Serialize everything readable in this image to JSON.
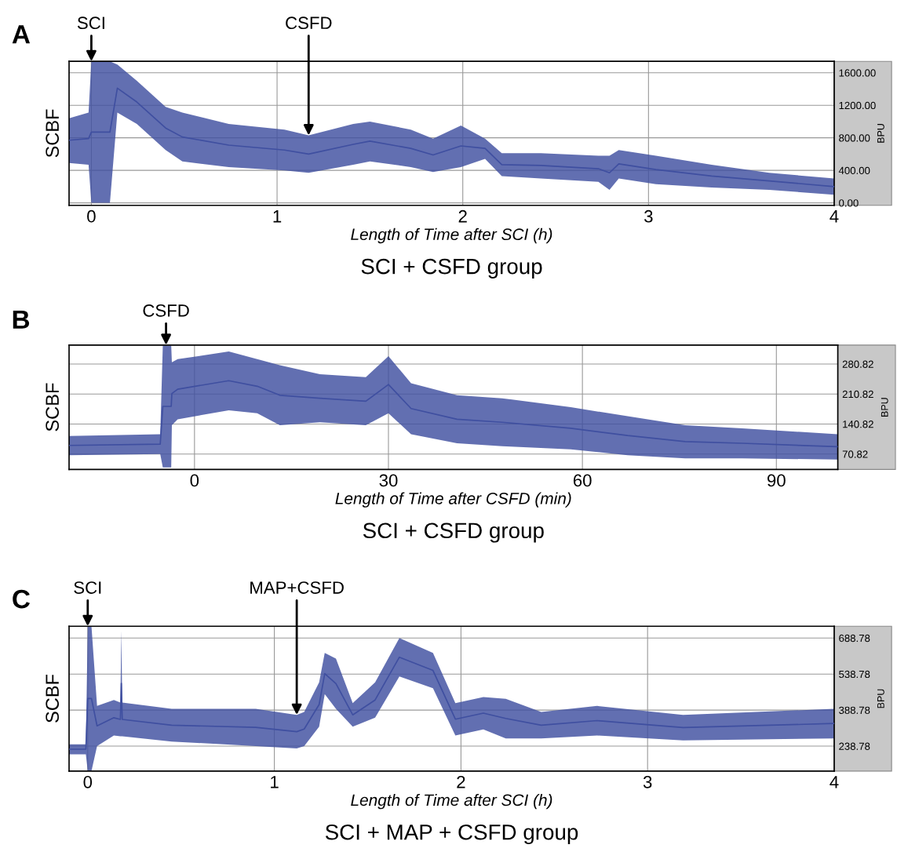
{
  "chart_data": [
    {
      "type": "line",
      "title": "A",
      "subtitle": "SCI + CSFD group",
      "xlabel": "Length of Time after SCI (h)",
      "ylabel": "SCBF",
      "annotations": [
        "BPU",
        {
          "text": "SCI",
          "x": 0,
          "y": 1740
        },
        {
          "text": "CSFD",
          "x": 1.17,
          "y": 830
        }
      ],
      "xlim": [
        -0.12,
        4.0
      ],
      "xticks": [
        0,
        1,
        2,
        3,
        4
      ],
      "ylim": [
        -30,
        1740
      ],
      "yticks": [
        {
          "value": 0,
          "label": "0.00"
        },
        {
          "value": 400,
          "label": "400.00"
        },
        {
          "value": 800,
          "label": "800.00"
        },
        {
          "value": 1200,
          "label": "1200.00"
        },
        {
          "value": 1600,
          "label": "1600.00"
        }
      ],
      "grid": true,
      "marker": "none",
      "line_style": "solid",
      "series": [
        {
          "color": "#3f4fa0",
          "x": [
            -0.12,
            -0.015,
            0.0,
            0.1,
            0.14,
            0.245,
            0.4,
            0.49,
            0.74,
            1.04,
            1.17,
            1.41,
            1.5,
            1.72,
            1.84,
            1.99,
            2.12,
            2.21,
            2.42,
            2.73,
            2.79,
            2.84,
            3.04,
            3.34,
            3.65,
            4.0
          ],
          "upper": [
            1040,
            1110,
            1740,
            1740,
            1700,
            1500,
            1180,
            1110,
            970,
            900,
            830,
            970,
            1000,
            900,
            790,
            950,
            790,
            610,
            610,
            580,
            580,
            650,
            580,
            470,
            370,
            300
          ],
          "lower": [
            490,
            470,
            0,
            0,
            1110,
            970,
            650,
            510,
            440,
            400,
            370,
            470,
            510,
            440,
            380,
            440,
            540,
            330,
            300,
            260,
            160,
            300,
            230,
            190,
            160,
            100
          ],
          "values": [
            770,
            790,
            870,
            870,
            1410,
            1240,
            920,
            810,
            710,
            650,
            600,
            720,
            760,
            670,
            590,
            700,
            670,
            470,
            460,
            420,
            370,
            480,
            410,
            330,
            270,
            200
          ]
        }
      ]
    },
    {
      "type": "line",
      "title": "B",
      "subtitle": "SCI + CSFD group",
      "xlabel": "Length of Time after CSFD (min)",
      "ylabel": "SCBF",
      "annotations": [
        "BPU",
        {
          "text": "CSFD",
          "x": -4.4,
          "y": 325
        }
      ],
      "xlim": [
        -19.4,
        99.5
      ],
      "xticks": [
        0,
        30,
        60,
        90
      ],
      "ylim": [
        35,
        325
      ],
      "yticks": [
        70.82,
        140.82,
        210.82,
        280.82
      ],
      "grid": true,
      "marker": "none",
      "line_style": "solid",
      "series": [
        {
          "color": "#3f4fa0",
          "x": [
            -19.4,
            -5.3,
            -4.9,
            -3.6,
            -3.5,
            -2.6,
            5.3,
            9.7,
            13.2,
            19.4,
            26.5,
            30,
            33.5,
            40.6,
            47.6,
            58.2,
            67,
            75.9,
            84.7,
            99.5
          ],
          "upper": [
            113,
            117,
            324,
            324,
            285,
            292,
            310,
            292,
            278,
            257,
            250,
            299,
            236,
            208,
            201,
            180,
            159,
            138,
            131,
            117
          ],
          "lower": [
            68,
            71,
            40,
            40,
            138,
            152,
            173,
            166,
            138,
            145,
            138,
            166,
            117,
            96,
            89,
            82,
            68,
            61,
            61,
            58
          ],
          "values": [
            91,
            94,
            182,
            182,
            212,
            222,
            242,
            229,
            208,
            201,
            194,
            233,
            177,
            152,
            145,
            131,
            114,
            100,
            96,
            88
          ]
        }
      ]
    },
    {
      "type": "line",
      "title": "C",
      "subtitle": "SCI + MAP + CSFD group",
      "xlabel": "Length of Time after SCI (h)",
      "ylabel": "SCBF",
      "annotations": [
        "BPU",
        {
          "text": "SCI",
          "x": 0,
          "y": 738
        },
        {
          "text": "MAP+CSFD",
          "x": 1.12,
          "y": 369
        }
      ],
      "xlim": [
        -0.1,
        4.0
      ],
      "xticks": [
        0,
        1,
        2,
        3,
        4
      ],
      "ylim": [
        135,
        738
      ],
      "yticks": [
        238.78,
        388.78,
        538.78,
        688.78
      ],
      "grid": true,
      "marker": "none",
      "line_style": "solid",
      "series": [
        {
          "color": "#3f4fa0",
          "x": [
            -0.1,
            -0.01,
            0.0,
            0.02,
            0.05,
            0.14,
            0.175,
            0.18,
            0.185,
            0.45,
            0.9,
            1.12,
            1.16,
            1.24,
            1.27,
            1.33,
            1.42,
            1.54,
            1.67,
            1.85,
            1.97,
            2.12,
            2.24,
            2.43,
            2.73,
            3.19,
            4.0
          ],
          "upper": [
            246,
            246,
            738,
            738,
            406,
            431,
            420,
            720,
            420,
            394,
            394,
            369,
            381,
            504,
            627,
            603,
            418,
            504,
            689,
            627,
            418,
            443,
            436,
            381,
            406,
            369,
            394
          ],
          "lower": [
            205,
            205,
            135,
            135,
            239,
            283,
            280,
            280,
            280,
            258,
            239,
            229,
            239,
            320,
            455,
            394,
            320,
            357,
            529,
            480,
            283,
            308,
            271,
            271,
            283,
            263,
            271
          ],
          "values": [
            226,
            226,
            437,
            437,
            323,
            357,
            350,
            500,
            350,
            326,
            317,
            299,
            310,
            412,
            541,
            499,
            369,
            431,
            609,
            554,
            351,
            376,
            354,
            326,
            345,
            316,
            333
          ]
        }
      ]
    }
  ]
}
